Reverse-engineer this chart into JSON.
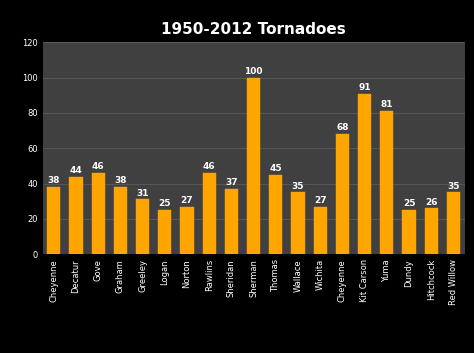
{
  "title": "1950-2012 Tornadoes",
  "categories": [
    "Cheyenne",
    "Decatur",
    "Gove",
    "Graham",
    "Greeley",
    "Logan",
    "Norton",
    "Rawlins",
    "Sheridan",
    "Sherman",
    "Thomas",
    "Wallace",
    "Wichita",
    "Cheyenne",
    "Kit Carson",
    "Yuma",
    "Dundy",
    "Hitchcock",
    "Red Willow"
  ],
  "values": [
    38,
    44,
    46,
    38,
    31,
    25,
    27,
    46,
    37,
    100,
    45,
    35,
    27,
    68,
    91,
    81,
    25,
    26,
    35
  ],
  "bar_color": "#FFA500",
  "bar_edge_color": "#FFA500",
  "background_color": "#000000",
  "plot_bg_color": "#404040",
  "title_color": "#ffffff",
  "label_color": "#ffffff",
  "tick_color": "#ffffff",
  "grid_color": "#606060",
  "ylim": [
    0,
    120
  ],
  "yticks": [
    0,
    20,
    40,
    60,
    80,
    100,
    120
  ],
  "title_fontsize": 11,
  "label_fontsize": 6,
  "value_fontsize": 6.5
}
